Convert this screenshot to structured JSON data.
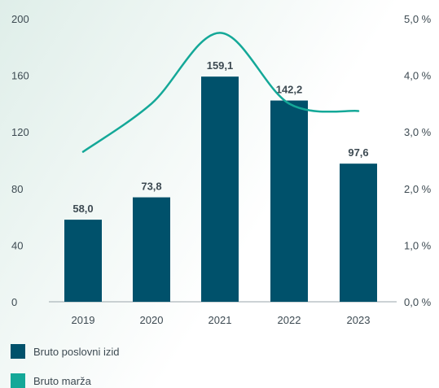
{
  "chart_data": {
    "type": "bar",
    "categories": [
      "2019",
      "2020",
      "2021",
      "2022",
      "2023"
    ],
    "series": [
      {
        "name": "Bruto poslovni izid",
        "type": "bar",
        "axis": "left",
        "values": [
          58.0,
          73.8,
          159.1,
          142.2,
          97.6
        ],
        "labels": [
          "58,0",
          "73,8",
          "159,1",
          "142,2",
          "97,6"
        ],
        "color": "#00516b"
      },
      {
        "name": "Bruto marža",
        "type": "line",
        "axis": "right",
        "values": [
          2.65,
          3.5,
          4.75,
          3.5,
          3.37
        ],
        "color": "#14a898"
      }
    ],
    "left_axis": {
      "ylim": [
        0,
        200
      ],
      "ticks": [
        0,
        40,
        80,
        120,
        160,
        200
      ],
      "tick_labels": [
        "0",
        "40",
        "80",
        "120",
        "160",
        "200"
      ]
    },
    "right_axis": {
      "ylim": [
        0,
        5
      ],
      "ticks": [
        0,
        1,
        2,
        3,
        4,
        5
      ],
      "tick_labels": [
        "0,0 %",
        "1,0 %",
        "2,0 %",
        "3,0 %",
        "4,0 %",
        "5,0 %"
      ]
    },
    "grid": false,
    "legend_position": "bottom-left",
    "background_gradient": [
      "#dfeee9",
      "#ffffff"
    ]
  }
}
